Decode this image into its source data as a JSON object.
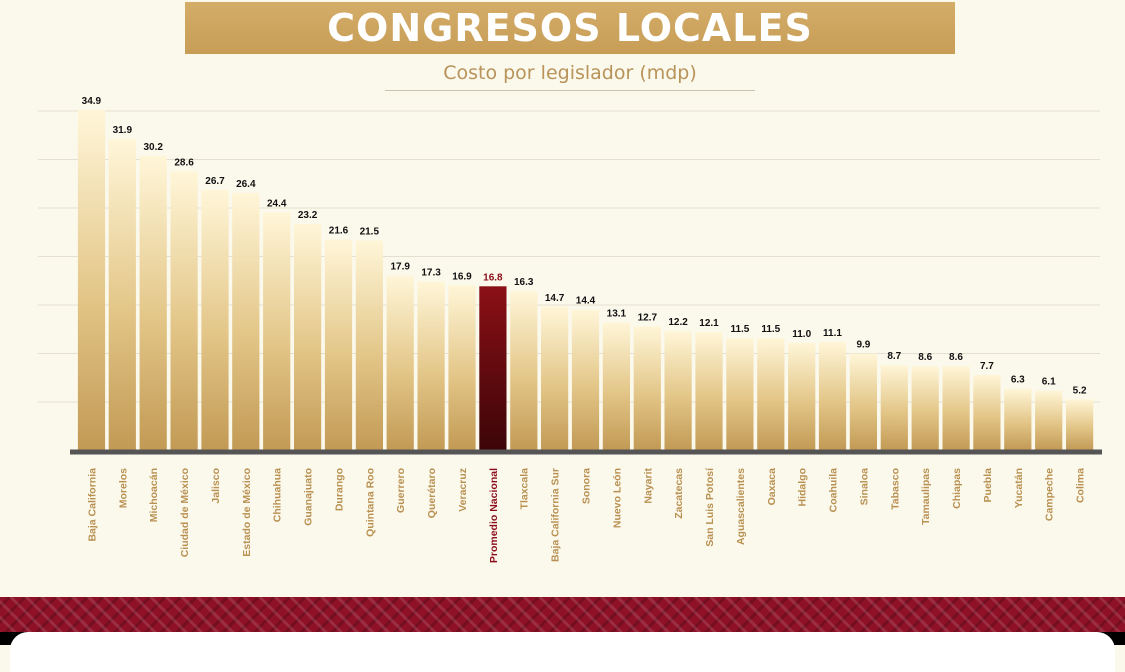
{
  "header": {
    "title": "CONGRESOS LOCALES",
    "subtitle": "Costo por legislador (mdp)"
  },
  "colors": {
    "banner": "#c9a05a",
    "bar_gold": "#d9bc7a",
    "bar_highlight": "#7a0c12",
    "label_dark": "#111111",
    "label_highlight": "#8b0d1a",
    "tick_label": "#b89050",
    "baseline": "#555555",
    "footer": "#8e1128"
  },
  "chart_data": {
    "type": "bar",
    "title": "CONGRESOS LOCALES",
    "subtitle": "Costo por legislador (mdp)",
    "xlabel": "",
    "ylabel": "",
    "ylim": [
      0,
      34.9
    ],
    "grid": true,
    "legend": "none",
    "highlight_category": "Promedio Nacional",
    "categories": [
      "Baja California",
      "Morelos",
      "Michoacán",
      "Ciudad de México",
      "Jalisco",
      "Estado de México",
      "Chihuahua",
      "Guanajuato",
      "Durango",
      "Quintana Roo",
      "Guerrero",
      "Querétaro",
      "Veracruz",
      "Promedio Nacional",
      "Tlaxcala",
      "Baja California Sur",
      "Sonora",
      "Nuevo León",
      "Nayarit",
      "Zacatecas",
      "San Luis Potosí",
      "Aguascalientes",
      "Oaxaca",
      "Hidalgo",
      "Coahuila",
      "Sinaloa",
      "Tabasco",
      "Tamaulipas",
      "Chiapas",
      "Puebla",
      "Yucatán",
      "Campeche",
      "Colima"
    ],
    "values": [
      34.9,
      31.9,
      30.2,
      28.6,
      26.7,
      26.4,
      24.4,
      23.2,
      21.6,
      21.5,
      17.9,
      17.3,
      16.9,
      16.8,
      16.3,
      14.7,
      14.4,
      13.1,
      12.7,
      12.2,
      12.1,
      11.5,
      11.5,
      11.0,
      11.1,
      9.9,
      8.7,
      8.6,
      8.6,
      7.7,
      6.3,
      6.1,
      5.2
    ],
    "value_labels": [
      "34.9",
      "31.9",
      "30.2",
      "28.6",
      "26.7",
      "26.4",
      "24.4",
      "23.2",
      "21.6",
      "21.5",
      "17.9",
      "17.3",
      "16.9",
      "16.8",
      "16.3",
      "14.7",
      "14.4",
      "13.1",
      "12.7",
      "12.2",
      "12.1",
      "11.5",
      "11.5",
      "11.0",
      "11.1",
      "9.9",
      "8.7",
      "8.6",
      "8.6",
      "7.7",
      "6.3",
      "6.1",
      "5.2"
    ]
  }
}
